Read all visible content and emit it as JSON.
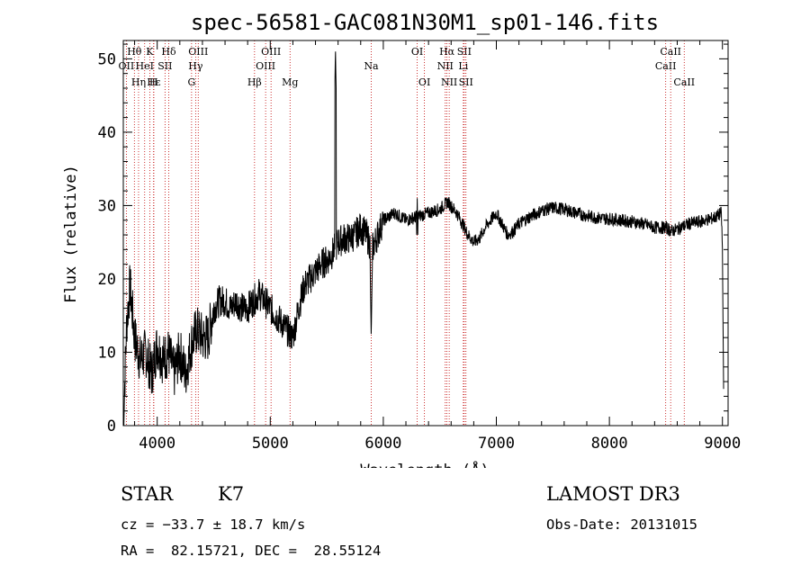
{
  "chart_data": {
    "type": "line",
    "title": "spec-56581-GAC081N30M1_sp01-146.fits",
    "xlabel": "Wavelength (Å)",
    "ylabel": "Flux (relative)",
    "xlim": [
      3700,
      9050
    ],
    "ylim": [
      0,
      52.5
    ],
    "xticks": [
      4000,
      5000,
      6000,
      7000,
      8000,
      9000
    ],
    "yticks": [
      0,
      10,
      20,
      30,
      40,
      50
    ],
    "spectrum_anchor_points": [
      [
        3700,
        0
      ],
      [
        3730,
        14
      ],
      [
        3760,
        19
      ],
      [
        3800,
        12
      ],
      [
        3850,
        9
      ],
      [
        3900,
        10
      ],
      [
        3950,
        7
      ],
      [
        4000,
        11
      ],
      [
        4050,
        9
      ],
      [
        4100,
        10
      ],
      [
        4150,
        7
      ],
      [
        4200,
        10
      ],
      [
        4250,
        7
      ],
      [
        4300,
        11
      ],
      [
        4350,
        13
      ],
      [
        4400,
        12
      ],
      [
        4450,
        12
      ],
      [
        4500,
        16
      ],
      [
        4550,
        17
      ],
      [
        4600,
        17
      ],
      [
        4650,
        16
      ],
      [
        4700,
        17
      ],
      [
        4750,
        16
      ],
      [
        4800,
        16
      ],
      [
        4850,
        17
      ],
      [
        4900,
        18
      ],
      [
        4950,
        17
      ],
      [
        5000,
        16
      ],
      [
        5050,
        15
      ],
      [
        5100,
        14
      ],
      [
        5150,
        13
      ],
      [
        5200,
        12
      ],
      [
        5250,
        16
      ],
      [
        5300,
        19
      ],
      [
        5350,
        20
      ],
      [
        5400,
        21
      ],
      [
        5450,
        22
      ],
      [
        5500,
        22.5
      ],
      [
        5550,
        23.5
      ],
      [
        5600,
        25
      ],
      [
        5650,
        25.5
      ],
      [
        5700,
        25.5
      ],
      [
        5750,
        26
      ],
      [
        5800,
        27
      ],
      [
        5850,
        26
      ],
      [
        5900,
        24
      ],
      [
        5950,
        26
      ],
      [
        6000,
        28
      ],
      [
        6100,
        29
      ],
      [
        6200,
        28
      ],
      [
        6300,
        28.5
      ],
      [
        6400,
        29
      ],
      [
        6500,
        29.5
      ],
      [
        6570,
        30.5
      ],
      [
        6650,
        29
      ],
      [
        6700,
        27.5
      ],
      [
        6750,
        26
      ],
      [
        6800,
        25
      ],
      [
        6850,
        25.5
      ],
      [
        6900,
        27
      ],
      [
        6950,
        28
      ],
      [
        7000,
        29
      ],
      [
        7050,
        27.5
      ],
      [
        7100,
        26
      ],
      [
        7150,
        26.5
      ],
      [
        7200,
        27.5
      ],
      [
        7300,
        28.5
      ],
      [
        7400,
        29.3
      ],
      [
        7500,
        29.7
      ],
      [
        7600,
        29.5
      ],
      [
        7700,
        29
      ],
      [
        7800,
        28.6
      ],
      [
        7900,
        28.3
      ],
      [
        8000,
        28.2
      ],
      [
        8100,
        28
      ],
      [
        8200,
        27.8
      ],
      [
        8300,
        27.5
      ],
      [
        8400,
        27
      ],
      [
        8500,
        27
      ],
      [
        8550,
        26.5
      ],
      [
        8600,
        26.8
      ],
      [
        8700,
        27.5
      ],
      [
        8800,
        27.8
      ],
      [
        8900,
        28.2
      ],
      [
        8950,
        28.5
      ],
      [
        8990,
        29
      ],
      [
        9000,
        24
      ],
      [
        9010,
        5
      ]
    ],
    "spectrum_features": [
      {
        "wavelength": 5577,
        "peak": 51.5,
        "kind": "emission spike"
      },
      {
        "wavelength": 5893,
        "depth": 12,
        "kind": "Na absorption"
      },
      {
        "wavelength": 6300,
        "peak": 31,
        "kind": "emission"
      }
    ],
    "line_markers": [
      {
        "label": "Hθ",
        "wavelength": 3798,
        "row": 1
      },
      {
        "label": "OII",
        "wavelength": 3727,
        "row": 2
      },
      {
        "label": "Hε",
        "wavelength": 3970,
        "row": 3
      },
      {
        "label": "K",
        "wavelength": 3934,
        "row": 1
      },
      {
        "label": "HeI",
        "wavelength": 3889,
        "row": 2
      },
      {
        "label": "Hη",
        "wavelength": 3835,
        "row": 3
      },
      {
        "label": "Hδ",
        "wavelength": 4102,
        "row": 1
      },
      {
        "label": "SII",
        "wavelength": 4069,
        "row": 2
      },
      {
        "label": "H",
        "wavelength": 3968,
        "row": 3
      },
      {
        "label": "OIII",
        "wavelength": 4363,
        "row": 1
      },
      {
        "label": "Hγ",
        "wavelength": 4340,
        "row": 2
      },
      {
        "label": "G",
        "wavelength": 4304,
        "row": 3
      },
      {
        "label": "OIII",
        "wavelength": 5007,
        "row": 1
      },
      {
        "label": "OIII",
        "wavelength": 4959,
        "row": 2
      },
      {
        "label": "Hβ",
        "wavelength": 4861,
        "row": 3
      },
      {
        "label": "Mg",
        "wavelength": 5175,
        "row": 3
      },
      {
        "label": "Na",
        "wavelength": 5893,
        "row": 2
      },
      {
        "label": "OI",
        "wavelength": 6300,
        "row": 1
      },
      {
        "label": "OI",
        "wavelength": 6364,
        "row": 3
      },
      {
        "label": "Hα",
        "wavelength": 6563,
        "row": 1
      },
      {
        "label": "NII",
        "wavelength": 6548,
        "row": 2
      },
      {
        "label": "NII",
        "wavelength": 6583,
        "row": 3
      },
      {
        "label": "SII",
        "wavelength": 6716,
        "row": 1
      },
      {
        "label": "Li",
        "wavelength": 6708,
        "row": 2
      },
      {
        "label": "SII",
        "wavelength": 6731,
        "row": 3
      },
      {
        "label": "CaII",
        "wavelength": 8542,
        "row": 1
      },
      {
        "label": "CaII",
        "wavelength": 8498,
        "row": 2
      },
      {
        "label": "CaII",
        "wavelength": 8662,
        "row": 3
      }
    ]
  },
  "info": {
    "class_label": "STAR",
    "subclass": "K7",
    "survey": "LAMOST DR3",
    "cz": "cz = −33.7 ± 18.7 km/s",
    "obs_date": "Obs-Date: 20131015",
    "coords": "RA =  82.15721, DEC =  28.55124"
  },
  "colors": {
    "axes": "#000000",
    "spectrum": "#000000",
    "line_marker": "#c00000"
  }
}
